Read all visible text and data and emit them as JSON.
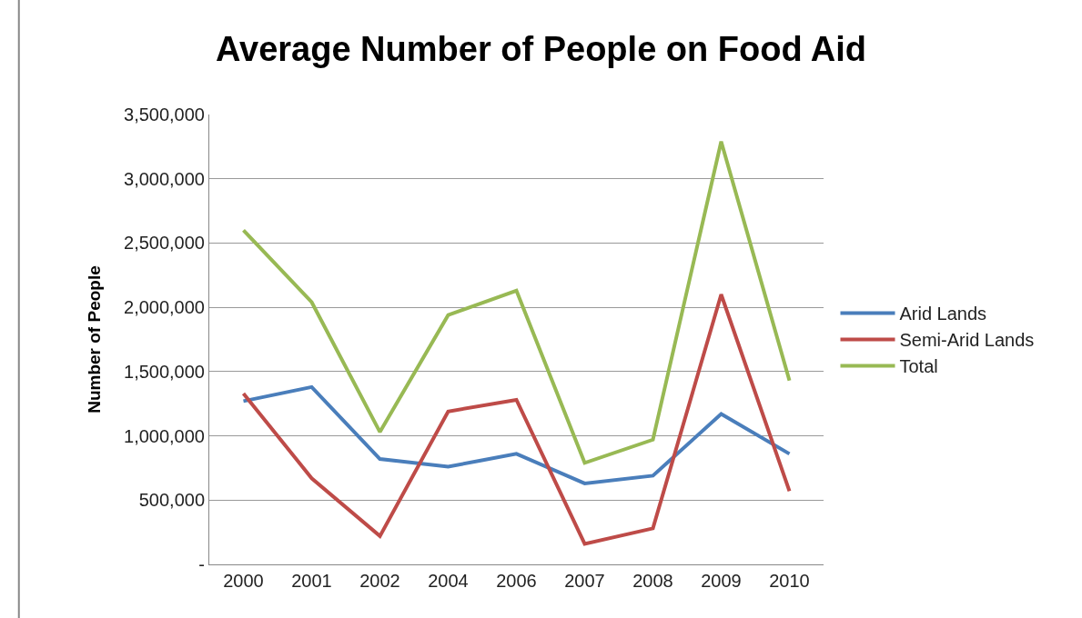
{
  "chart_data": {
    "type": "line",
    "title": "Average Number of People on Food Aid",
    "ylabel": "Number of People",
    "categories": [
      "2000",
      "2001",
      "2002",
      "2004",
      "2006",
      "2007",
      "2008",
      "2009",
      "2010"
    ],
    "series": [
      {
        "name": "Arid Lands",
        "color": "#4a7ebb",
        "values": [
          1270000,
          1380000,
          820000,
          760000,
          860000,
          630000,
          690000,
          1170000,
          860000
        ]
      },
      {
        "name": "Semi-Arid Lands",
        "color": "#be4b48",
        "values": [
          1330000,
          670000,
          220000,
          1190000,
          1280000,
          160000,
          280000,
          2100000,
          570000
        ]
      },
      {
        "name": "Total",
        "color": "#98b954",
        "values": [
          2600000,
          2040000,
          1030000,
          1940000,
          2130000,
          790000,
          970000,
          3290000,
          1430000
        ]
      }
    ],
    "ylim": [
      0,
      3500000
    ],
    "yticks": [
      {
        "value": 0,
        "label": "-"
      },
      {
        "value": 500000,
        "label": "500,000"
      },
      {
        "value": 1000000,
        "label": "1,000,000"
      },
      {
        "value": 1500000,
        "label": "1,500,000"
      },
      {
        "value": 2000000,
        "label": "2,000,000"
      },
      {
        "value": 2500000,
        "label": "2,500,000"
      },
      {
        "value": 3000000,
        "label": "3,000,000"
      },
      {
        "value": 3500000,
        "label": "3,500,000"
      }
    ],
    "grid": "y",
    "legend": "right",
    "marker": "none",
    "line_style": "solid"
  }
}
